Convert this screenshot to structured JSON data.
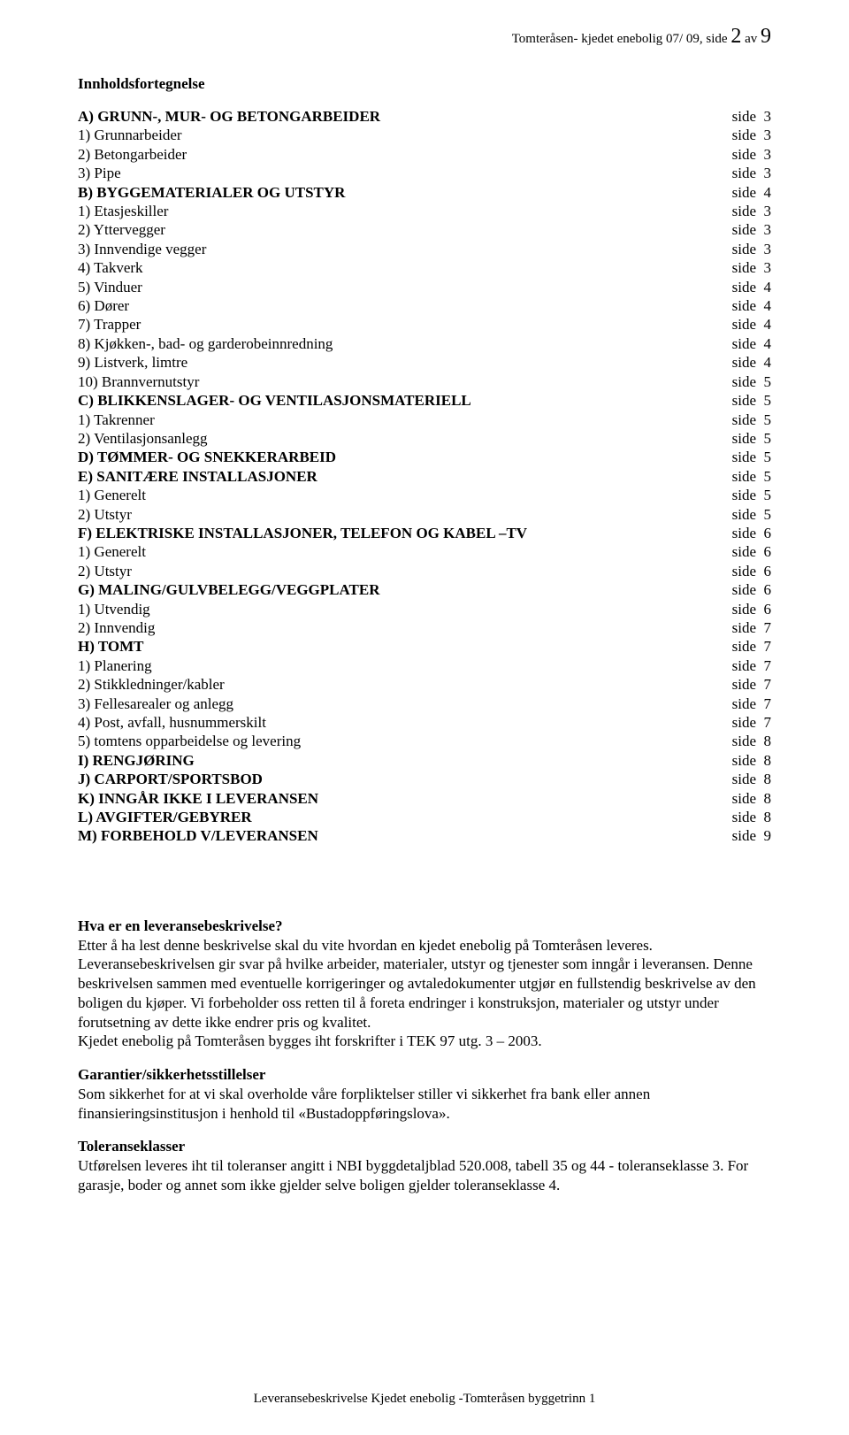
{
  "header": {
    "prefix": "Tomteråsen- kjedet enebolig 07/ 09, side ",
    "page": "2",
    "middle": " av ",
    "total": "9"
  },
  "toc_title": "Innholdsfortegnelse",
  "side_label": "side",
  "toc": [
    {
      "label": "A) GRUNN-, MUR- OG BETONGARBEIDER",
      "page": "3",
      "bold": true
    },
    {
      "label": "1) Grunnarbeider",
      "page": "3",
      "bold": false
    },
    {
      "label": "2) Betongarbeider",
      "page": "3",
      "bold": false
    },
    {
      "label": "3) Pipe",
      "page": "3",
      "bold": false
    },
    {
      "label": "B) BYGGEMATERIALER OG UTSTYR",
      "page": "4",
      "bold": true
    },
    {
      "label": "1) Etasjeskiller",
      "page": "3",
      "bold": false
    },
    {
      "label": "2) Yttervegger",
      "page": "3",
      "bold": false
    },
    {
      "label": "3) Innvendige vegger",
      "page": "3",
      "bold": false
    },
    {
      "label": "4) Takverk",
      "page": "3",
      "bold": false
    },
    {
      "label": "5) Vinduer",
      "page": "4",
      "bold": false
    },
    {
      "label": "6) Dører",
      "page": "4",
      "bold": false
    },
    {
      "label": "7) Trapper",
      "page": "4",
      "bold": false
    },
    {
      "label": "8) Kjøkken-, bad- og garderobeinnredning",
      "page": "4",
      "bold": false
    },
    {
      "label": "9) Listverk, limtre",
      "page": "4",
      "bold": false
    },
    {
      "label": "10) Brannvernutstyr",
      "page": "5",
      "bold": false
    },
    {
      "label": "C) BLIKKENSLAGER- OG VENTILASJONSMATERIELL",
      "page": "5",
      "bold": true
    },
    {
      "label": "1) Takrenner",
      "page": "5",
      "bold": false
    },
    {
      "label": "2) Ventilasjonsanlegg",
      "page": "5",
      "bold": false
    },
    {
      "label": "D) TØMMER- OG SNEKKERARBEID",
      "page": "5",
      "bold": true
    },
    {
      "label": "E) SANITÆRE INSTALLASJONER",
      "page": "5",
      "bold": true
    },
    {
      "label": "1) Generelt",
      "page": "5",
      "bold": false
    },
    {
      "label": "2) Utstyr",
      "page": "5",
      "bold": false
    },
    {
      "label": "F) ELEKTRISKE INSTALLASJONER, TELEFON OG KABEL –TV",
      "page": "6",
      "bold": true
    },
    {
      "label": "1) Generelt",
      "page": "6",
      "bold": false
    },
    {
      "label": "2) Utstyr",
      "page": "6",
      "bold": false
    },
    {
      "label": "G) MALING/GULVBELEGG/VEGGPLATER",
      "page": "6",
      "bold": true
    },
    {
      "label": "1) Utvendig",
      "page": "6",
      "bold": false
    },
    {
      "label": "2) Innvendig",
      "page": "7",
      "bold": false
    },
    {
      "label": "H) TOMT",
      "page": "7",
      "bold": true
    },
    {
      "label": "1) Planering",
      "page": "7",
      "bold": false
    },
    {
      "label": "2) Stikkledninger/kabler",
      "page": "7",
      "bold": false
    },
    {
      "label": "3) Fellesarealer og anlegg",
      "page": "7",
      "bold": false
    },
    {
      "label": "4) Post, avfall, husnummerskilt",
      "page": "7",
      "bold": false
    },
    {
      "label": "5) tomtens opparbeidelse og levering",
      "page": "8",
      "bold": false
    },
    {
      "label": "I) RENGJØRING",
      "page": "8",
      "bold": true
    },
    {
      "label": "J) CARPORT/SPORTSBOD",
      "page": "8",
      "bold": true
    },
    {
      "label": "K) INNGÅR IKKE I LEVERANSEN",
      "page": "8",
      "bold": true
    },
    {
      "label": "L) AVGIFTER/GEBYRER",
      "page": "8",
      "bold": true
    },
    {
      "label": "M) FORBEHOLD V/LEVERANSEN",
      "page": "9",
      "bold": true
    }
  ],
  "body": {
    "q_title": "Hva er en leveransebeskrivelse?",
    "q_text": "Etter å ha lest denne beskrivelse skal du vite hvordan en kjedet enebolig på Tomteråsen leveres. Leveransebeskrivelsen gir svar på hvilke arbeider, materialer, utstyr og tjenester som inngår i leveransen. Denne beskrivelsen sammen med eventuelle korrigeringer og avtaledokumenter utgjør en fullstendig beskrivelse av den boligen du kjøper. Vi forbeholder oss retten til å foreta endringer i konstruksjon, materialer og utstyr under forutsetning av dette ikke endrer pris og kvalitet.",
    "q_text2": "Kjedet enebolig på Tomteråsen bygges iht forskrifter i TEK 97 utg. 3 – 2003.",
    "g_title": "Garantier/sikkerhetsstillelser",
    "g_text": "Som sikkerhet for at vi skal overholde våre forpliktelser stiller vi sikkerhet fra bank eller annen finansieringsinstitusjon i henhold til «Bustadoppføringslova».",
    "t_title": "Toleranseklasser",
    "t_text": "Utførelsen leveres iht til toleranser angitt i NBI byggdetaljblad 520.008, tabell 35 og 44 - toleranseklasse 3. For garasje, boder og annet som ikke gjelder selve boligen gjelder toleranseklasse 4."
  },
  "footer": "Leveransebeskrivelse Kjedet enebolig -Tomteråsen byggetrinn 1"
}
